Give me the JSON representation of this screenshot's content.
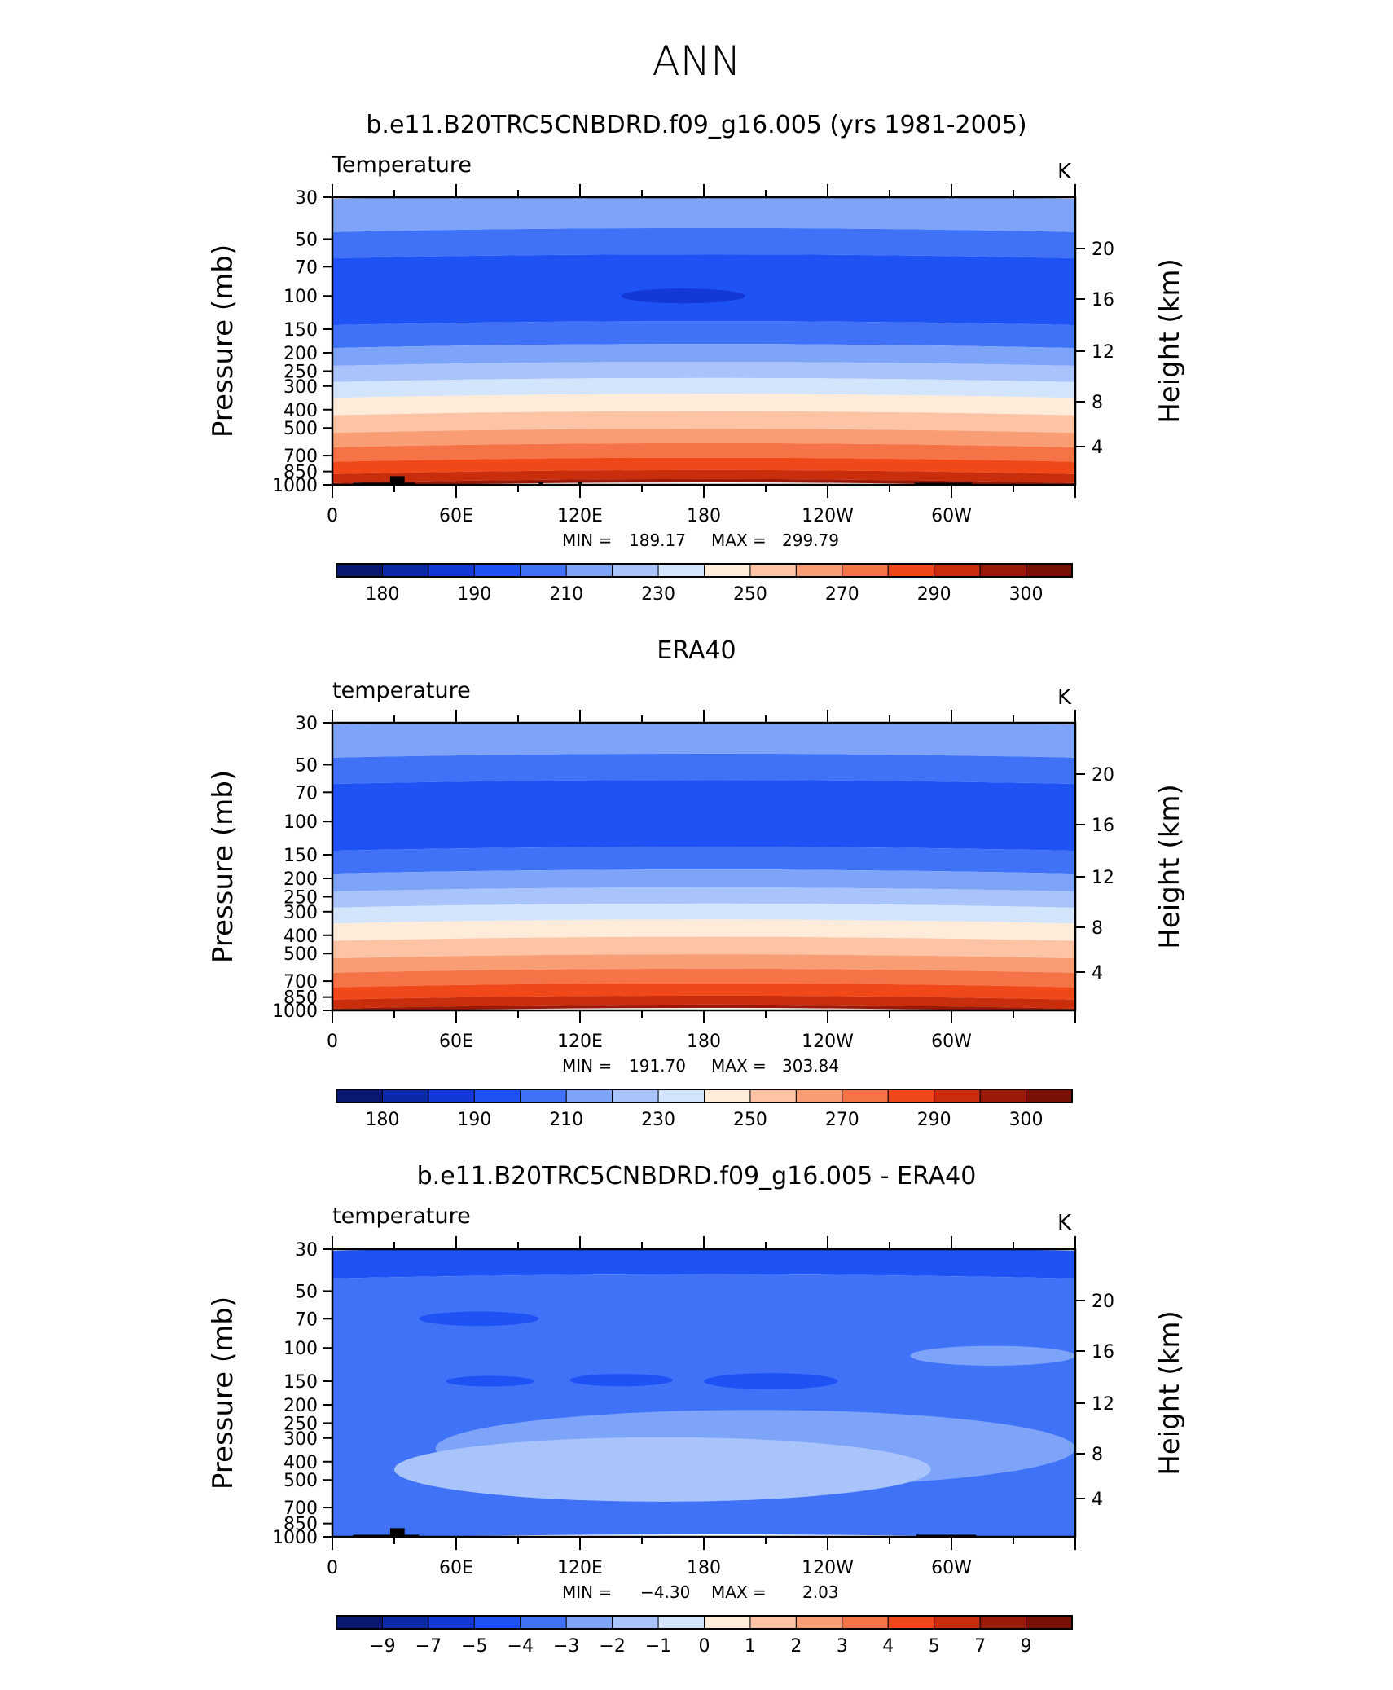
{
  "figure": {
    "title": "ANN",
    "panels": [
      {
        "title": "b.e11.B20TRC5CNBDRD.f09_g16.005 (yrs 1981-2005)",
        "left_label": "Temperature",
        "units": "K",
        "stats": {
          "min_label": "MIN =",
          "min": "189.17",
          "max_label": "MAX =",
          "max": "299.79"
        },
        "colorbar_labels": [
          "180",
          "190",
          "210",
          "230",
          "250",
          "270",
          "290",
          "300"
        ]
      },
      {
        "title": "ERA40",
        "left_label": "temperature",
        "units": "K",
        "stats": {
          "min_label": "MIN =",
          "min": "191.70",
          "max_label": "MAX =",
          "max": "303.84"
        },
        "colorbar_labels": [
          "180",
          "190",
          "210",
          "230",
          "250",
          "270",
          "290",
          "300"
        ]
      },
      {
        "title": "b.e11.B20TRC5CNBDRD.f09_g16.005 - ERA40",
        "left_label": "temperature",
        "units": "K",
        "stats": {
          "min_label": "MIN =",
          "min": "−4.30",
          "max_label": "MAX =",
          "max": "2.03"
        },
        "colorbar_labels": [
          "−9",
          "−7",
          "−5",
          "−4",
          "−3",
          "−2",
          "−1",
          "0",
          "1",
          "2",
          "3",
          "4",
          "5",
          "7",
          "9"
        ]
      }
    ]
  },
  "chart_data": [
    {
      "type": "heatmap",
      "title": "b.e11.B20TRC5CNBDRD.f09_g16.005 (yrs 1981-2005)",
      "ylabel": "Pressure (mb)",
      "y2label": "Height (km)",
      "x_ticks": [
        "0",
        "60E",
        "120E",
        "180",
        "120W",
        "60W"
      ],
      "y_ticks": [
        "30",
        "50",
        "70",
        "100",
        "150",
        "200",
        "250",
        "300",
        "400",
        "500",
        "700",
        "850",
        "1000"
      ],
      "y2_ticks": [
        "20",
        "16",
        "12",
        "8",
        "4"
      ],
      "xlim": [
        0,
        360
      ],
      "ylim": [
        1000,
        30
      ],
      "y_scale": "log",
      "colorbar": {
        "levels": [
          180,
          185,
          190,
          200,
          210,
          220,
          230,
          240,
          250,
          260,
          270,
          280,
          290,
          295,
          300
        ],
        "bins": 16
      },
      "bands": [
        {
          "p": [
            30,
            45
          ],
          "bin": 5
        },
        {
          "p": [
            45,
            62
          ],
          "bin": 4
        },
        {
          "p": [
            62,
            140
          ],
          "bin": 3
        },
        {
          "p": [
            140,
            185
          ],
          "bin": 4
        },
        {
          "p": [
            185,
            230
          ],
          "bin": 5
        },
        {
          "p": [
            230,
            280
          ],
          "bin": 6
        },
        {
          "p": [
            280,
            340
          ],
          "bin": 7
        },
        {
          "p": [
            340,
            420
          ],
          "bin": 8
        },
        {
          "p": [
            420,
            520
          ],
          "bin": 9
        },
        {
          "p": [
            520,
            620
          ],
          "bin": 10
        },
        {
          "p": [
            620,
            740
          ],
          "bin": 11
        },
        {
          "p": [
            740,
            860
          ],
          "bin": 12
        },
        {
          "p": [
            860,
            960
          ],
          "bin": 13
        },
        {
          "p": [
            960,
            1000
          ],
          "bin": 14
        }
      ],
      "blobs": [
        {
          "p_center": 100,
          "lon": [
            140,
            200
          ],
          "bin": 2
        }
      ],
      "terrain": [
        {
          "lon": [
            10,
            40
          ],
          "p_top": 975
        },
        {
          "lon": [
            28,
            35
          ],
          "p_top": 900
        },
        {
          "lon": [
            100,
            102
          ],
          "p_top": 970
        },
        {
          "lon": [
            119,
            121
          ],
          "p_top": 970
        },
        {
          "lon": [
            282,
            310
          ],
          "p_top": 975
        }
      ],
      "stats": {
        "min": 189.17,
        "max": 299.79
      }
    },
    {
      "type": "heatmap",
      "title": "ERA40",
      "ylabel": "Pressure (mb)",
      "y2label": "Height (km)",
      "x_ticks": [
        "0",
        "60E",
        "120E",
        "180",
        "120W",
        "60W"
      ],
      "y_ticks": [
        "30",
        "50",
        "70",
        "100",
        "150",
        "200",
        "250",
        "300",
        "400",
        "500",
        "700",
        "850",
        "1000"
      ],
      "y2_ticks": [
        "20",
        "16",
        "12",
        "8",
        "4"
      ],
      "xlim": [
        0,
        360
      ],
      "ylim": [
        1000,
        30
      ],
      "y_scale": "log",
      "colorbar": {
        "levels": [
          180,
          185,
          190,
          200,
          210,
          220,
          230,
          240,
          250,
          260,
          270,
          280,
          290,
          295,
          300
        ],
        "bins": 16
      },
      "bands": [
        {
          "p": [
            30,
            45
          ],
          "bin": 5
        },
        {
          "p": [
            45,
            62
          ],
          "bin": 4
        },
        {
          "p": [
            62,
            140
          ],
          "bin": 3
        },
        {
          "p": [
            140,
            185
          ],
          "bin": 4
        },
        {
          "p": [
            185,
            230
          ],
          "bin": 5
        },
        {
          "p": [
            230,
            280
          ],
          "bin": 6
        },
        {
          "p": [
            280,
            340
          ],
          "bin": 7
        },
        {
          "p": [
            340,
            420
          ],
          "bin": 8
        },
        {
          "p": [
            420,
            520
          ],
          "bin": 9
        },
        {
          "p": [
            520,
            620
          ],
          "bin": 10
        },
        {
          "p": [
            620,
            740
          ],
          "bin": 11
        },
        {
          "p": [
            740,
            860
          ],
          "bin": 12
        },
        {
          "p": [
            860,
            960
          ],
          "bin": 13
        },
        {
          "p": [
            960,
            1000
          ],
          "bin": 14
        }
      ],
      "blobs": [],
      "terrain": [],
      "stats": {
        "min": 191.7,
        "max": 303.84
      }
    },
    {
      "type": "heatmap",
      "title": "b.e11.B20TRC5CNBDRD.f09_g16.005 - ERA40",
      "ylabel": "Pressure (mb)",
      "y2label": "Height (km)",
      "x_ticks": [
        "0",
        "60E",
        "120E",
        "180",
        "120W",
        "60W"
      ],
      "y_ticks": [
        "30",
        "50",
        "70",
        "100",
        "150",
        "200",
        "250",
        "300",
        "400",
        "500",
        "700",
        "850",
        "1000"
      ],
      "y2_ticks": [
        "20",
        "16",
        "12",
        "8",
        "4"
      ],
      "xlim": [
        0,
        360
      ],
      "ylim": [
        1000,
        30
      ],
      "y_scale": "log",
      "colorbar": {
        "levels": [
          -9,
          -7,
          -5,
          -4,
          -3,
          -2,
          -1,
          0,
          1,
          2,
          3,
          4,
          5,
          7,
          9
        ],
        "bins": 16
      },
      "bands": [
        {
          "p": [
            30,
            42
          ],
          "bin": 3
        },
        {
          "p": [
            42,
            1000
          ],
          "bin": 4
        }
      ],
      "blobs": [
        {
          "p_center": 110,
          "lon": [
            280,
            360
          ],
          "bin": 5
        },
        {
          "p_center": 150,
          "lon": [
            55,
            98
          ],
          "bin": 3
        },
        {
          "p_center": 148,
          "lon": [
            115,
            165
          ],
          "bin": 3
        },
        {
          "p_center": 150,
          "lon": [
            180,
            245
          ],
          "bin": 3
        },
        {
          "p_center": 70,
          "lon": [
            42,
            100
          ],
          "bin": 3
        },
        {
          "p_center": 340,
          "lon": [
            50,
            360
          ],
          "bin": 5
        },
        {
          "p_center": 440,
          "lon": [
            30,
            290
          ],
          "bin": 6
        }
      ],
      "terrain": [
        {
          "lon": [
            10,
            42
          ],
          "p_top": 975
        },
        {
          "lon": [
            28,
            35
          ],
          "p_top": 900
        },
        {
          "lon": [
            283,
            312
          ],
          "p_top": 975
        }
      ],
      "stats": {
        "min": -4.3,
        "max": 2.03
      }
    }
  ],
  "palette": [
    "#0a1970",
    "#0c2aa8",
    "#1438d6",
    "#1f52f5",
    "#3f72f7",
    "#7ea4fa",
    "#a9c3fb",
    "#d3e4fd",
    "#ffebda",
    "#fcc4a4",
    "#f89d74",
    "#f57346",
    "#f04818",
    "#c92e0c",
    "#9b1908",
    "#7a0f06"
  ]
}
